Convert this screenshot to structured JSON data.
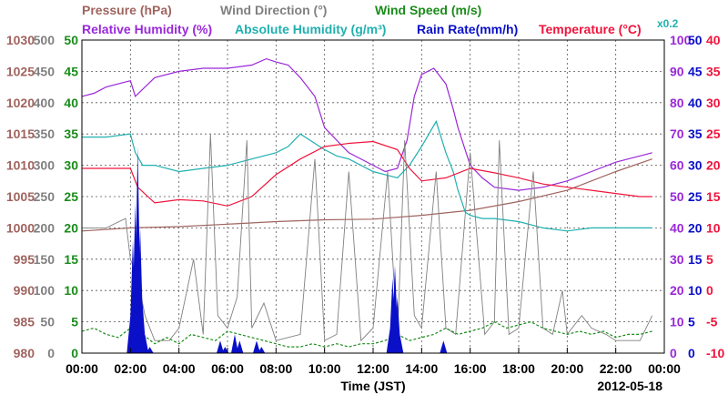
{
  "chart_data": {
    "type": "line",
    "date": "2012-05-18",
    "xlabel": "Time (JST)",
    "x_ticks": [
      "00:00",
      "02:00",
      "04:00",
      "06:00",
      "08:00",
      "10:00",
      "12:00",
      "14:00",
      "16:00",
      "18:00",
      "20:00",
      "22:00",
      "00:00"
    ],
    "x_range_hours": [
      0,
      24
    ],
    "grid": true,
    "legend": {
      "row1": [
        {
          "key": "pressure",
          "label": "Pressure (hPa)",
          "color": "#a0645f"
        },
        {
          "key": "wind_dir",
          "label": "Wind Direction (°)",
          "color": "#808080"
        },
        {
          "key": "wind_speed",
          "label": "Wind Speed (m/s)",
          "color": "#1a8c1a"
        }
      ],
      "row2": [
        {
          "key": "rh",
          "label": "Relative Humidity (%)",
          "color": "#9a28d8"
        },
        {
          "key": "ah",
          "label": "Absolute Humidity (g/m³)",
          "color": "#20b0b0"
        },
        {
          "key": "rain",
          "label": "Rain Rate(mm/h)",
          "color": "#0a10c8"
        },
        {
          "key": "temp",
          "label": "Temperature (°C)",
          "color": "#f0143c"
        }
      ],
      "ah_scale_note": "x0.2"
    },
    "axes": [
      {
        "key": "pressure",
        "color": "#a0645f",
        "side": "left",
        "range": [
          980,
          1030
        ],
        "ticks": [
          "980",
          "985",
          "990",
          "995",
          "1000",
          "1005",
          "1010",
          "1015",
          "1020",
          "1025",
          "1030"
        ]
      },
      {
        "key": "wind_dir",
        "color": "#808080",
        "side": "left",
        "range": [
          0,
          500
        ],
        "ticks": [
          "0",
          "50",
          "100",
          "150",
          "200",
          "250",
          "300",
          "350",
          "400",
          "450",
          "500"
        ]
      },
      {
        "key": "wind_speed",
        "color": "#1a8c1a",
        "side": "left",
        "range": [
          0,
          50
        ],
        "ticks": [
          "0",
          "5",
          "10",
          "15",
          "20",
          "25",
          "30",
          "35",
          "40",
          "45",
          "50"
        ]
      },
      {
        "key": "rh",
        "color": "#9a28d8",
        "side": "right",
        "range": [
          0,
          100
        ],
        "ticks": [
          "0",
          "10",
          "20",
          "30",
          "40",
          "50",
          "60",
          "70",
          "80",
          "90",
          "100"
        ]
      },
      {
        "key": "rain",
        "color": "#0a10c8",
        "side": "right",
        "range": [
          0,
          50
        ],
        "ticks": [
          "0",
          "5",
          "10",
          "15",
          "20",
          "25",
          "30",
          "35",
          "40",
          "45",
          "50"
        ]
      },
      {
        "key": "temp",
        "color": "#f0143c",
        "side": "right",
        "range": [
          -10,
          40
        ],
        "ticks": [
          "-10",
          "-5",
          "0",
          "5",
          "10",
          "15",
          "20",
          "25",
          "30",
          "35",
          "40"
        ]
      }
    ],
    "series": [
      {
        "name": "Pressure (hPa)",
        "key": "pressure",
        "color": "#a0645f",
        "x": [
          0,
          2,
          4,
          6,
          8,
          10,
          12,
          14,
          16,
          18,
          20,
          22,
          23.5
        ],
        "y": [
          999.5,
          1000,
          1000.2,
          1000.6,
          1001,
          1001.3,
          1001.4,
          1002,
          1002.8,
          1004.2,
          1006,
          1009,
          1011
        ]
      },
      {
        "name": "Relative Humidity (%)",
        "key": "rh",
        "color": "#9a28d8",
        "x": [
          0,
          0.5,
          1,
          2,
          2.2,
          3,
          4,
          5,
          6,
          7,
          7.6,
          8,
          8.5,
          9,
          9.6,
          10,
          10.5,
          11,
          12,
          12.5,
          13,
          13.4,
          13.7,
          14,
          14.5,
          15,
          15.3,
          15.5,
          16,
          16.5,
          17,
          18,
          19,
          20,
          21,
          22,
          23,
          23.5
        ],
        "y": [
          82,
          83,
          85,
          87,
          82,
          88,
          90,
          91,
          91,
          92,
          94,
          93,
          92,
          88,
          82,
          72,
          68,
          64,
          60,
          58,
          59,
          68,
          82,
          89,
          91,
          86,
          78,
          72,
          60,
          56,
          53,
          52,
          53,
          55,
          58,
          61,
          63,
          64
        ]
      },
      {
        "name": "Absolute Humidity (g/m³)",
        "key": "ah",
        "color": "#20b0b0",
        "x": [
          0,
          1,
          2,
          2.2,
          2.5,
          3,
          4,
          5,
          6,
          7,
          8,
          8.5,
          9,
          9.4,
          9.8,
          10,
          10.5,
          11,
          12,
          12.5,
          13,
          13.5,
          14,
          14.3,
          14.6,
          15,
          15.3,
          15.5,
          15.8,
          16,
          16.5,
          17,
          18,
          19,
          20,
          21,
          22,
          23,
          23.5
        ],
        "y": [
          69,
          69,
          70,
          64,
          60,
          60,
          58,
          59,
          60,
          62,
          64,
          66,
          70,
          68,
          66,
          65,
          63,
          62,
          58,
          57,
          56,
          60,
          66,
          70,
          74,
          64,
          58,
          52,
          45,
          44,
          43,
          43,
          42,
          40,
          39,
          40,
          40,
          40,
          40
        ]
      },
      {
        "name": "Temperature (°C)",
        "key": "temp",
        "color": "#f0143c",
        "x": [
          0,
          2,
          2.3,
          3,
          4,
          5,
          6,
          7,
          8,
          9,
          10,
          11,
          12,
          13,
          13.5,
          14,
          15,
          16,
          17,
          18,
          19,
          20,
          21,
          22,
          23,
          23.5
        ],
        "y": [
          19.5,
          19.5,
          16.5,
          14,
          14.5,
          14.3,
          13.5,
          15,
          18.5,
          21,
          23,
          23.5,
          23.8,
          22.5,
          19.5,
          17.5,
          18,
          19.5,
          18.8,
          18,
          17,
          16.5,
          16,
          15.5,
          15,
          15
        ]
      },
      {
        "name": "Wind Direction (°)",
        "key": "wind_dir",
        "color": "#808080",
        "x": [
          0,
          1,
          1.8,
          2,
          2.3,
          2.6,
          3,
          3.6,
          4,
          4.6,
          5,
          5.3,
          5.6,
          6,
          6.4,
          6.8,
          7,
          7.5,
          8,
          9,
          9.6,
          10,
          10.5,
          11,
          11.5,
          12,
          12.6,
          13,
          13.3,
          13.7,
          14,
          14.6,
          15,
          15.4,
          16,
          16.6,
          17,
          17.2,
          17.6,
          18,
          18.6,
          19,
          19.4,
          19.8,
          20,
          20.6,
          21,
          21.6,
          22,
          22.5,
          23,
          23.5
        ],
        "y": [
          200,
          200,
          215,
          150,
          120,
          60,
          20,
          20,
          40,
          150,
          30,
          350,
          60,
          40,
          90,
          340,
          40,
          80,
          20,
          30,
          310,
          20,
          30,
          290,
          20,
          40,
          290,
          20,
          340,
          60,
          40,
          290,
          40,
          30,
          320,
          30,
          50,
          340,
          30,
          40,
          290,
          40,
          30,
          100,
          30,
          60,
          40,
          30,
          20,
          20,
          20,
          60
        ]
      },
      {
        "name": "Wind Speed (m/s)",
        "key": "wind_speed",
        "color": "#1a8c1a",
        "x": [
          0,
          0.5,
          1,
          1.5,
          2,
          2.5,
          3,
          3.5,
          4,
          4.5,
          5,
          5.5,
          6,
          6.5,
          7,
          7.5,
          8,
          8.5,
          9,
          9.5,
          10,
          10.5,
          11,
          11.5,
          12,
          12.5,
          13,
          13.5,
          14,
          14.5,
          15,
          15.5,
          16,
          16.5,
          17,
          17.5,
          18,
          18.5,
          19,
          19.5,
          20,
          20.5,
          21,
          21.5,
          22,
          22.5,
          23,
          23.5
        ],
        "y": [
          3.5,
          4,
          3,
          2.5,
          4,
          3,
          1.5,
          2.5,
          1.5,
          3,
          2.5,
          2,
          3.5,
          3,
          2.5,
          2,
          1.5,
          1,
          1,
          1.5,
          1,
          1.5,
          1,
          1.5,
          1.5,
          2,
          3,
          2,
          2.5,
          3,
          4,
          3,
          3.5,
          4,
          5,
          4,
          4.5,
          5,
          4,
          3.5,
          3,
          3.5,
          3,
          3.5,
          2.5,
          3,
          3,
          3.5
        ]
      },
      {
        "name": "Rain Rate(mm/h)",
        "key": "rain",
        "color": "#0a10c8",
        "x": [
          2.0,
          2.1,
          2.2,
          2.3,
          2.4,
          2.5,
          2.6,
          2.8,
          5.7,
          5.9,
          6.3,
          6.5,
          7.2,
          7.4,
          12.7,
          12.8,
          12.9,
          13.0,
          13.1,
          14.9
        ],
        "y": [
          6,
          18,
          24,
          33,
          20,
          8,
          3,
          1,
          2,
          1,
          3,
          2,
          2,
          1,
          4,
          12,
          14,
          9,
          3,
          2
        ]
      }
    ]
  }
}
